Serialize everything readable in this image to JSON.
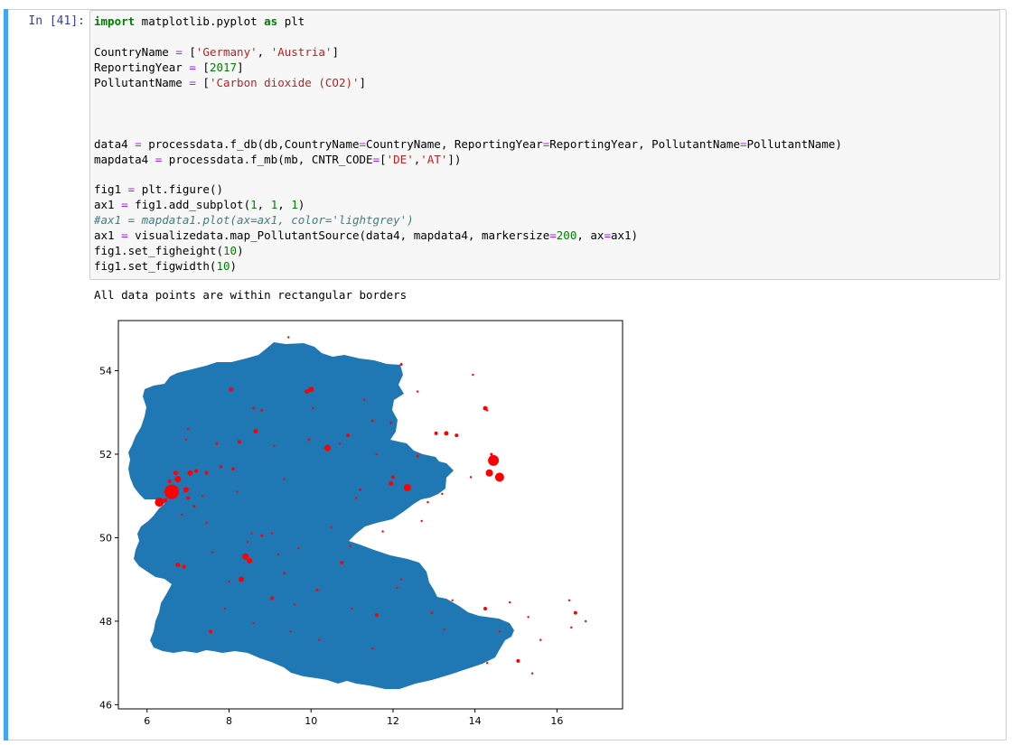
{
  "cell": {
    "prompt": "In [41]:",
    "code_lines": [
      [
        {
          "t": "import",
          "c": "kw"
        },
        {
          "t": " matplotlib.pyplot "
        },
        {
          "t": "as",
          "c": "kw"
        },
        {
          "t": " plt"
        }
      ],
      [],
      [
        {
          "t": "CountryName "
        },
        {
          "t": "=",
          "c": "op"
        },
        {
          "t": " ["
        },
        {
          "t": "'Germany'",
          "c": "str"
        },
        {
          "t": ", "
        },
        {
          "t": "'Austria'",
          "c": "str"
        },
        {
          "t": "]"
        }
      ],
      [
        {
          "t": "ReportingYear "
        },
        {
          "t": "=",
          "c": "op"
        },
        {
          "t": " ["
        },
        {
          "t": "2017",
          "c": "num"
        },
        {
          "t": "]"
        }
      ],
      [
        {
          "t": "PollutantName "
        },
        {
          "t": "=",
          "c": "op"
        },
        {
          "t": " ["
        },
        {
          "t": "'Carbon dioxide (CO2)'",
          "c": "str"
        },
        {
          "t": "]"
        }
      ],
      [],
      [],
      [],
      [
        {
          "t": "data4 "
        },
        {
          "t": "=",
          "c": "op"
        },
        {
          "t": " processdata.f_db(db,CountryName"
        },
        {
          "t": "=",
          "c": "op"
        },
        {
          "t": "CountryName, ReportingYear"
        },
        {
          "t": "=",
          "c": "op"
        },
        {
          "t": "ReportingYear, PollutantName"
        },
        {
          "t": "=",
          "c": "op"
        },
        {
          "t": "PollutantName)"
        }
      ],
      [
        {
          "t": "mapdata4 "
        },
        {
          "t": "=",
          "c": "op"
        },
        {
          "t": " processdata.f_mb(mb, CNTR_CODE"
        },
        {
          "t": "=",
          "c": "op"
        },
        {
          "t": "["
        },
        {
          "t": "'DE'",
          "c": "str"
        },
        {
          "t": ","
        },
        {
          "t": "'AT'",
          "c": "str"
        },
        {
          "t": "])"
        }
      ],
      [],
      [
        {
          "t": "fig1 "
        },
        {
          "t": "=",
          "c": "op"
        },
        {
          "t": " plt.figure()"
        }
      ],
      [
        {
          "t": "ax1 "
        },
        {
          "t": "=",
          "c": "op"
        },
        {
          "t": " fig1.add_subplot("
        },
        {
          "t": "1",
          "c": "num"
        },
        {
          "t": ", "
        },
        {
          "t": "1",
          "c": "num"
        },
        {
          "t": ", "
        },
        {
          "t": "1",
          "c": "num"
        },
        {
          "t": ")"
        }
      ],
      [
        {
          "t": "#ax1 = mapdata1.plot(ax=ax1, color='lightgrey')",
          "c": "cm"
        }
      ],
      [
        {
          "t": "ax1 "
        },
        {
          "t": "=",
          "c": "op"
        },
        {
          "t": " visualizedata.map_PollutantSource(data4, mapdata4, markersize"
        },
        {
          "t": "=",
          "c": "op"
        },
        {
          "t": "200",
          "c": "num"
        },
        {
          "t": ", ax"
        },
        {
          "t": "=",
          "c": "op"
        },
        {
          "t": "ax1)"
        }
      ],
      [
        {
          "t": "fig1.set_figheight("
        },
        {
          "t": "10",
          "c": "num"
        },
        {
          "t": ")"
        }
      ],
      [
        {
          "t": "fig1.set_figwidth("
        },
        {
          "t": "10",
          "c": "num"
        },
        {
          "t": ")"
        }
      ]
    ],
    "stdout": "All data points are within rectangular borders"
  },
  "colors": {
    "map_fill": "#1f77b4",
    "marker": "#ff0000",
    "cell_bar": "#42a5f5",
    "prompt": "#303f9f"
  },
  "chart_data": {
    "type": "scatter",
    "title": "",
    "xlabel": "",
    "ylabel": "",
    "xlim": [
      5.3,
      17.6
    ],
    "ylim": [
      45.9,
      55.2
    ],
    "xticks": [
      6,
      8,
      10,
      12,
      14,
      16
    ],
    "yticks": [
      46,
      48,
      50,
      52,
      54
    ],
    "points": [
      {
        "x": 6.6,
        "y": 51.1,
        "s": 8
      },
      {
        "x": 6.3,
        "y": 50.85,
        "s": 5
      },
      {
        "x": 14.45,
        "y": 51.85,
        "s": 6
      },
      {
        "x": 14.6,
        "y": 51.45,
        "s": 5
      },
      {
        "x": 14.35,
        "y": 51.55,
        "s": 4
      },
      {
        "x": 12.35,
        "y": 51.2,
        "s": 4
      },
      {
        "x": 10.4,
        "y": 52.15,
        "s": 3.5
      },
      {
        "x": 8.4,
        "y": 49.55,
        "s": 3.5
      },
      {
        "x": 8.5,
        "y": 49.45,
        "s": 3
      },
      {
        "x": 8.3,
        "y": 49.0,
        "s": 3
      },
      {
        "x": 7.05,
        "y": 51.55,
        "s": 3
      },
      {
        "x": 6.75,
        "y": 51.4,
        "s": 3.5
      },
      {
        "x": 6.95,
        "y": 51.15,
        "s": 3
      },
      {
        "x": 6.7,
        "y": 51.55,
        "s": 2.5
      },
      {
        "x": 10.0,
        "y": 53.55,
        "s": 3
      },
      {
        "x": 9.9,
        "y": 53.5,
        "s": 2.5
      },
      {
        "x": 13.3,
        "y": 52.5,
        "s": 2.5
      },
      {
        "x": 14.25,
        "y": 53.1,
        "s": 2.5
      },
      {
        "x": 11.95,
        "y": 51.3,
        "s": 2.5
      },
      {
        "x": 12.0,
        "y": 51.45,
        "s": 2
      },
      {
        "x": 8.65,
        "y": 52.55,
        "s": 2.5
      },
      {
        "x": 10.9,
        "y": 52.45,
        "s": 2
      },
      {
        "x": 8.05,
        "y": 53.55,
        "s": 2.5
      },
      {
        "x": 8.25,
        "y": 52.3,
        "s": 2
      },
      {
        "x": 6.75,
        "y": 49.35,
        "s": 2.5
      },
      {
        "x": 6.9,
        "y": 49.3,
        "s": 2
      },
      {
        "x": 7.55,
        "y": 47.75,
        "s": 2
      },
      {
        "x": 9.05,
        "y": 48.55,
        "s": 2
      },
      {
        "x": 10.75,
        "y": 49.4,
        "s": 2
      },
      {
        "x": 11.6,
        "y": 48.15,
        "s": 2
      },
      {
        "x": 15.05,
        "y": 47.05,
        "s": 2
      },
      {
        "x": 16.45,
        "y": 48.2,
        "s": 2
      },
      {
        "x": 14.25,
        "y": 48.3,
        "s": 2
      },
      {
        "x": 13.05,
        "y": 52.5,
        "s": 2
      },
      {
        "x": 13.55,
        "y": 52.45,
        "s": 2
      },
      {
        "x": 12.95,
        "y": 48.2,
        "s": 1.5
      },
      {
        "x": 9.35,
        "y": 49.15,
        "s": 1.5
      },
      {
        "x": 7.45,
        "y": 51.55,
        "s": 2
      },
      {
        "x": 7.2,
        "y": 51.6,
        "s": 2
      },
      {
        "x": 7.8,
        "y": 51.7,
        "s": 1.8
      },
      {
        "x": 8.1,
        "y": 51.65,
        "s": 1.8
      },
      {
        "x": 7.0,
        "y": 50.95,
        "s": 2
      },
      {
        "x": 6.45,
        "y": 50.9,
        "s": 2
      },
      {
        "x": 7.15,
        "y": 50.75,
        "s": 1.5
      },
      {
        "x": 6.55,
        "y": 51.35,
        "s": 2
      },
      {
        "x": 7.7,
        "y": 52.25,
        "s": 1.5
      },
      {
        "x": 9.95,
        "y": 52.35,
        "s": 1.5
      },
      {
        "x": 11.2,
        "y": 51.15,
        "s": 1.5
      },
      {
        "x": 11.95,
        "y": 52.75,
        "s": 1.5
      },
      {
        "x": 12.6,
        "y": 51.95,
        "s": 1.5
      },
      {
        "x": 14.4,
        "y": 52.0,
        "s": 1.5
      },
      {
        "x": 8.6,
        "y": 53.1,
        "s": 1.5
      },
      {
        "x": 8.8,
        "y": 53.05,
        "s": 1.5
      },
      {
        "x": 11.5,
        "y": 52.8,
        "s": 1.5
      },
      {
        "x": 12.2,
        "y": 54.15,
        "s": 1.5
      },
      {
        "x": 9.45,
        "y": 54.8,
        "s": 1.2
      },
      {
        "x": 8.8,
        "y": 50.05,
        "s": 1.5
      },
      {
        "x": 9.05,
        "y": 50.1,
        "s": 1.2
      },
      {
        "x": 8.55,
        "y": 50.1,
        "s": 1.2
      },
      {
        "x": 7.6,
        "y": 49.65,
        "s": 1.2
      },
      {
        "x": 8.0,
        "y": 48.95,
        "s": 1.2
      },
      {
        "x": 9.2,
        "y": 49.6,
        "s": 1.2
      },
      {
        "x": 10.15,
        "y": 48.75,
        "s": 1.5
      },
      {
        "x": 9.6,
        "y": 48.4,
        "s": 1.2
      },
      {
        "x": 11.0,
        "y": 48.3,
        "s": 1.2
      },
      {
        "x": 12.1,
        "y": 48.8,
        "s": 1.2
      },
      {
        "x": 12.2,
        "y": 49.0,
        "s": 1.2
      },
      {
        "x": 13.45,
        "y": 48.5,
        "s": 1.2
      },
      {
        "x": 14.6,
        "y": 47.75,
        "s": 1.2
      },
      {
        "x": 15.6,
        "y": 47.55,
        "s": 1.2
      },
      {
        "x": 16.35,
        "y": 47.85,
        "s": 1.2
      },
      {
        "x": 15.3,
        "y": 48.1,
        "s": 1.2
      },
      {
        "x": 15.4,
        "y": 46.75,
        "s": 1.2
      },
      {
        "x": 14.3,
        "y": 47.0,
        "s": 1.2
      },
      {
        "x": 13.25,
        "y": 47.8,
        "s": 1.2
      },
      {
        "x": 11.5,
        "y": 47.35,
        "s": 1.2
      },
      {
        "x": 10.2,
        "y": 47.55,
        "s": 1.2
      },
      {
        "x": 12.7,
        "y": 50.4,
        "s": 1.2
      },
      {
        "x": 12.85,
        "y": 50.85,
        "s": 1.2
      },
      {
        "x": 10.5,
        "y": 50.25,
        "s": 1.2
      },
      {
        "x": 9.35,
        "y": 51.4,
        "s": 1.2
      },
      {
        "x": 8.2,
        "y": 51.1,
        "s": 1.2
      },
      {
        "x": 7.35,
        "y": 51.0,
        "s": 1.2
      },
      {
        "x": 6.85,
        "y": 50.55,
        "s": 1.2
      },
      {
        "x": 7.45,
        "y": 50.35,
        "s": 1.2
      },
      {
        "x": 7.0,
        "y": 52.6,
        "s": 1.2
      },
      {
        "x": 6.95,
        "y": 52.35,
        "s": 1.2
      },
      {
        "x": 9.1,
        "y": 52.2,
        "s": 1.2
      },
      {
        "x": 10.7,
        "y": 52.25,
        "s": 1.2
      },
      {
        "x": 11.6,
        "y": 52.0,
        "s": 1.2
      },
      {
        "x": 10.05,
        "y": 53.1,
        "s": 1.2
      },
      {
        "x": 11.3,
        "y": 53.3,
        "s": 1.2
      },
      {
        "x": 12.6,
        "y": 53.5,
        "s": 1.2
      },
      {
        "x": 13.95,
        "y": 53.9,
        "s": 1.2
      },
      {
        "x": 14.3,
        "y": 53.05,
        "s": 1.2
      },
      {
        "x": 13.9,
        "y": 51.45,
        "s": 1.2
      },
      {
        "x": 13.2,
        "y": 51.05,
        "s": 1.2
      },
      {
        "x": 8.45,
        "y": 49.9,
        "s": 1.2
      },
      {
        "x": 9.7,
        "y": 49.75,
        "s": 1.2
      },
      {
        "x": 10.95,
        "y": 49.8,
        "s": 1.2
      },
      {
        "x": 11.75,
        "y": 50.15,
        "s": 1.2
      },
      {
        "x": 11.1,
        "y": 50.95,
        "s": 1.2
      },
      {
        "x": 7.9,
        "y": 48.3,
        "s": 1.2
      },
      {
        "x": 8.6,
        "y": 47.95,
        "s": 1.2
      },
      {
        "x": 9.5,
        "y": 47.75,
        "s": 1.2
      },
      {
        "x": 16.3,
        "y": 48.5,
        "s": 1.2
      },
      {
        "x": 16.7,
        "y": 48.0,
        "s": 1.2
      },
      {
        "x": 14.85,
        "y": 48.45,
        "s": 1.2
      }
    ]
  }
}
